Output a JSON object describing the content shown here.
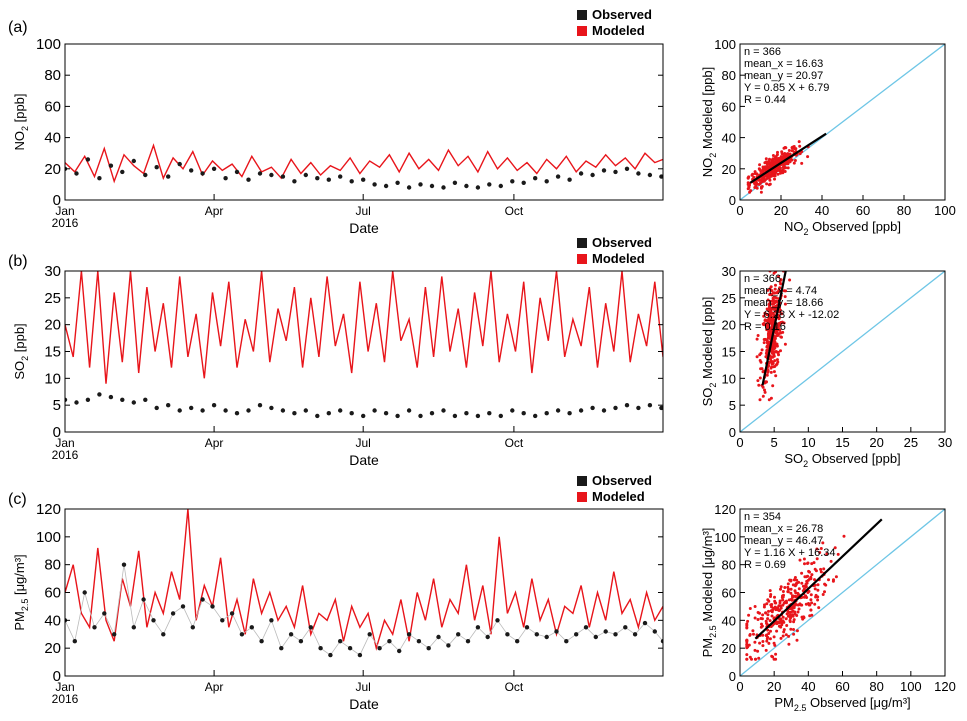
{
  "legend": {
    "observed": "Observed",
    "modeled": "Modeled"
  },
  "colors": {
    "observed": "#1a1a1a",
    "modeled": "#e8151b",
    "one_to_one": "#6ec6e6",
    "axis": "#000000"
  },
  "chart_data": [
    {
      "id": "a",
      "panel_label": "(a)",
      "type": "line",
      "title": "",
      "ylabel_main": "NO",
      "ylabel_sub": "2",
      "ylabel_unit": " [ppb]",
      "xlabel": "Date",
      "ylim": [
        0,
        100
      ],
      "yticks": [
        0,
        20,
        40,
        60,
        80,
        100
      ],
      "xticks": [
        {
          "day": 0,
          "label": "Jan"
        },
        {
          "day": 91,
          "label": "Apr"
        },
        {
          "day": 182,
          "label": "Jul"
        },
        {
          "day": 274,
          "label": "Oct"
        }
      ],
      "year_label": "2016",
      "series": [
        {
          "name": "Modeled",
          "style": "line",
          "x_days": [
            0,
            6,
            12,
            18,
            24,
            30,
            36,
            42,
            48,
            54,
            60,
            66,
            72,
            78,
            84,
            90,
            96,
            102,
            108,
            114,
            120,
            126,
            132,
            138,
            144,
            150,
            156,
            162,
            168,
            174,
            180,
            186,
            192,
            198,
            204,
            210,
            216,
            222,
            228,
            234,
            240,
            246,
            252,
            258,
            264,
            270,
            276,
            282,
            288,
            294,
            300,
            306,
            312,
            318,
            324,
            330,
            336,
            342,
            348,
            354,
            360,
            365
          ],
          "values": [
            24,
            18,
            28,
            15,
            33,
            12,
            29,
            22,
            17,
            35,
            14,
            27,
            20,
            31,
            16,
            25,
            19,
            23,
            15,
            28,
            18,
            21,
            14,
            26,
            17,
            24,
            16,
            22,
            19,
            27,
            17,
            25,
            21,
            29,
            18,
            30,
            20,
            26,
            19,
            32,
            22,
            28,
            18,
            31,
            20,
            27,
            19,
            24,
            17,
            26,
            20,
            28,
            18,
            25,
            21,
            29,
            22,
            27,
            20,
            30,
            24,
            26
          ]
        },
        {
          "name": "Observed",
          "style": "points",
          "x_days": [
            0,
            7,
            14,
            21,
            28,
            35,
            42,
            49,
            56,
            63,
            70,
            77,
            84,
            91,
            98,
            105,
            112,
            119,
            126,
            133,
            140,
            147,
            154,
            161,
            168,
            175,
            182,
            189,
            196,
            203,
            210,
            217,
            224,
            231,
            238,
            245,
            252,
            259,
            266,
            273,
            280,
            287,
            294,
            301,
            308,
            315,
            322,
            329,
            336,
            343,
            350,
            357,
            364
          ],
          "values": [
            20,
            17,
            26,
            14,
            22,
            18,
            25,
            16,
            21,
            15,
            23,
            19,
            17,
            20,
            14,
            18,
            13,
            17,
            16,
            15,
            12,
            16,
            14,
            13,
            15,
            12,
            13,
            10,
            9,
            11,
            8,
            10,
            9,
            8,
            11,
            9,
            8,
            10,
            9,
            12,
            11,
            14,
            12,
            15,
            13,
            17,
            16,
            19,
            18,
            20,
            17,
            16,
            15
          ]
        }
      ]
    },
    {
      "id": "a_scatter",
      "type": "scatter",
      "xlabel_main": "NO",
      "xlabel_sub": "2",
      "xlabel_unit": " Observed [ppb]",
      "ylabel_main": "NO",
      "ylabel_sub": "2",
      "ylabel_unit": " Modeled [ppb]",
      "xlim": [
        0,
        100
      ],
      "ylim": [
        0,
        100
      ],
      "xticks": [
        0,
        20,
        40,
        60,
        80,
        100
      ],
      "yticks": [
        0,
        20,
        40,
        60,
        80,
        100
      ],
      "stats": [
        "n = 366",
        "mean_x = 16.63",
        "mean_y = 20.97",
        "Y = 0.85 X + 6.79",
        "R = 0.44"
      ],
      "fit": {
        "slope": 0.85,
        "intercept": 6.79,
        "x_range": [
          5,
          42
        ]
      },
      "cloud": {
        "x_mean": 16.63,
        "x_sd": 6,
        "y_mean": 20.97,
        "y_sd": 5,
        "n": 366,
        "x_min": 4,
        "x_max": 45,
        "y_min": 5,
        "y_max": 40
      }
    },
    {
      "id": "b",
      "panel_label": "(b)",
      "type": "line",
      "title": "",
      "ylabel_main": "SO",
      "ylabel_sub": "2",
      "ylabel_unit": " [ppb]",
      "xlabel": "Date",
      "ylim": [
        0,
        30
      ],
      "yticks": [
        0,
        5,
        10,
        15,
        20,
        25,
        30
      ],
      "xticks": [
        {
          "day": 0,
          "label": "Jan"
        },
        {
          "day": 91,
          "label": "Apr"
        },
        {
          "day": 182,
          "label": "Jul"
        },
        {
          "day": 274,
          "label": "Oct"
        }
      ],
      "year_label": "2016",
      "series": [
        {
          "name": "Modeled",
          "style": "line",
          "x_days": [
            0,
            5,
            10,
            15,
            20,
            25,
            30,
            35,
            40,
            45,
            50,
            55,
            60,
            65,
            70,
            75,
            80,
            85,
            90,
            95,
            100,
            105,
            110,
            115,
            120,
            125,
            130,
            135,
            140,
            145,
            150,
            155,
            160,
            165,
            170,
            175,
            180,
            185,
            190,
            195,
            200,
            205,
            210,
            215,
            220,
            225,
            230,
            235,
            240,
            245,
            250,
            255,
            260,
            265,
            270,
            275,
            280,
            285,
            290,
            295,
            300,
            305,
            310,
            315,
            320,
            325,
            330,
            335,
            340,
            345,
            350,
            355,
            360,
            365
          ],
          "values": [
            20,
            14,
            30,
            12,
            30,
            9,
            26,
            13,
            30,
            11,
            27,
            15,
            24,
            12,
            29,
            14,
            22,
            10,
            26,
            16,
            28,
            12,
            21,
            15,
            30,
            13,
            23,
            17,
            27,
            12,
            25,
            14,
            29,
            16,
            22,
            11,
            28,
            15,
            24,
            13,
            30,
            17,
            21,
            12,
            27,
            14,
            29,
            15,
            23,
            12,
            26,
            16,
            30,
            13,
            22,
            15,
            28,
            11,
            25,
            17,
            30,
            14,
            21,
            16,
            27,
            12,
            24,
            15,
            30,
            13,
            22,
            16,
            28,
            14
          ]
        },
        {
          "name": "Observed",
          "style": "points",
          "x_days": [
            0,
            7,
            14,
            21,
            28,
            35,
            42,
            49,
            56,
            63,
            70,
            77,
            84,
            91,
            98,
            105,
            112,
            119,
            126,
            133,
            140,
            147,
            154,
            161,
            168,
            175,
            182,
            189,
            196,
            203,
            210,
            217,
            224,
            231,
            238,
            245,
            252,
            259,
            266,
            273,
            280,
            287,
            294,
            301,
            308,
            315,
            322,
            329,
            336,
            343,
            350,
            357,
            364
          ],
          "values": [
            6,
            5.5,
            6,
            7,
            6.5,
            6,
            5.5,
            6,
            4.5,
            5,
            4,
            4.5,
            4,
            5,
            4,
            3.5,
            4,
            5,
            4.5,
            4,
            3.5,
            4,
            3,
            3.5,
            4,
            3.5,
            3,
            4,
            3.5,
            3,
            4,
            3,
            3.5,
            4,
            3,
            3.5,
            3,
            3.5,
            3,
            4,
            3.5,
            3,
            3.5,
            4,
            3.5,
            4,
            4.5,
            4,
            4.5,
            5,
            4.5,
            5,
            4.5
          ]
        }
      ]
    },
    {
      "id": "b_scatter",
      "type": "scatter",
      "xlabel_main": "SO",
      "xlabel_sub": "2",
      "xlabel_unit": " Observed [ppb]",
      "ylabel_main": "SO",
      "ylabel_sub": "2",
      "ylabel_unit": " Modeled [ppb]",
      "xlim": [
        0,
        30
      ],
      "ylim": [
        0,
        30
      ],
      "xticks": [
        0,
        5,
        10,
        15,
        20,
        25,
        30
      ],
      "yticks": [
        0,
        5,
        10,
        15,
        20,
        25,
        30
      ],
      "stats": [
        "n = 366",
        "mean_x = 4.74",
        "mean_y = 18.66",
        "Y = 6.28 X + -12.02",
        "R = 0.16"
      ],
      "fit": {
        "slope": 6.28,
        "intercept": -12.02,
        "x_range": [
          3.3,
          6.7
        ]
      },
      "cloud": {
        "x_mean": 4.74,
        "x_sd": 0.8,
        "y_mean": 18.66,
        "y_sd": 6,
        "n": 366,
        "x_min": 2.5,
        "x_max": 8,
        "y_min": 6,
        "y_max": 30
      }
    },
    {
      "id": "c",
      "panel_label": "(c)",
      "type": "line",
      "title": "",
      "ylabel_main": "PM",
      "ylabel_sub": "2.5",
      "ylabel_unit": " [μg/m³]",
      "xlabel": "Date",
      "ylim": [
        0,
        120
      ],
      "yticks": [
        0,
        20,
        40,
        60,
        80,
        100,
        120
      ],
      "xticks": [
        {
          "day": 0,
          "label": "Jan"
        },
        {
          "day": 91,
          "label": "Apr"
        },
        {
          "day": 182,
          "label": "Jul"
        },
        {
          "day": 274,
          "label": "Oct"
        }
      ],
      "year_label": "2016",
      "series": [
        {
          "name": "Modeled",
          "style": "line",
          "x_days": [
            0,
            5,
            10,
            15,
            20,
            25,
            30,
            35,
            40,
            45,
            50,
            55,
            60,
            65,
            70,
            75,
            80,
            85,
            90,
            95,
            100,
            105,
            110,
            115,
            120,
            125,
            130,
            135,
            140,
            145,
            150,
            155,
            160,
            165,
            170,
            175,
            180,
            185,
            190,
            195,
            200,
            205,
            210,
            215,
            220,
            225,
            230,
            235,
            240,
            245,
            250,
            255,
            260,
            265,
            270,
            275,
            280,
            285,
            290,
            295,
            300,
            305,
            310,
            315,
            320,
            325,
            330,
            335,
            340,
            345,
            350,
            355,
            360,
            365
          ],
          "values": [
            60,
            80,
            45,
            35,
            92,
            40,
            25,
            70,
            50,
            90,
            35,
            60,
            45,
            75,
            55,
            120,
            40,
            65,
            50,
            85,
            35,
            55,
            30,
            70,
            45,
            60,
            40,
            50,
            35,
            65,
            30,
            45,
            40,
            55,
            25,
            50,
            35,
            45,
            20,
            40,
            30,
            55,
            25,
            60,
            40,
            70,
            35,
            55,
            45,
            80,
            40,
            65,
            30,
            100,
            45,
            60,
            35,
            70,
            40,
            55,
            30,
            50,
            45,
            65,
            35,
            60,
            40,
            75,
            45,
            55,
            35,
            60,
            40,
            50
          ]
        },
        {
          "name": "Observed",
          "style": "points",
          "x_days": [
            0,
            6,
            12,
            18,
            24,
            30,
            36,
            42,
            48,
            54,
            60,
            66,
            72,
            78,
            84,
            90,
            96,
            102,
            108,
            114,
            120,
            126,
            132,
            138,
            144,
            150,
            156,
            162,
            168,
            174,
            180,
            186,
            192,
            198,
            204,
            210,
            216,
            222,
            228,
            234,
            240,
            246,
            252,
            258,
            264,
            270,
            276,
            282,
            288,
            294,
            300,
            306,
            312,
            318,
            324,
            330,
            336,
            342,
            348,
            354,
            360,
            365
          ],
          "values": [
            40,
            25,
            60,
            35,
            45,
            30,
            80,
            35,
            55,
            40,
            30,
            45,
            50,
            35,
            55,
            50,
            40,
            45,
            30,
            35,
            25,
            40,
            20,
            30,
            25,
            35,
            20,
            15,
            25,
            20,
            15,
            30,
            20,
            25,
            18,
            30,
            25,
            20,
            28,
            22,
            30,
            25,
            35,
            28,
            40,
            30,
            25,
            35,
            30,
            28,
            32,
            25,
            30,
            35,
            28,
            32,
            30,
            35,
            30,
            38,
            32,
            25
          ]
        }
      ]
    },
    {
      "id": "c_scatter",
      "type": "scatter",
      "xlabel_main": "PM",
      "xlabel_sub": "2.5",
      "xlabel_unit": " Observed [μg/m³]",
      "ylabel_main": "PM",
      "ylabel_sub": "2.5",
      "ylabel_unit": " Modeled [μg/m³]",
      "xlim": [
        0,
        120
      ],
      "ylim": [
        0,
        120
      ],
      "xticks": [
        0,
        20,
        40,
        60,
        80,
        100,
        120
      ],
      "yticks": [
        0,
        20,
        40,
        60,
        80,
        100,
        120
      ],
      "stats": [
        "n = 354",
        "mean_x = 26.78",
        "mean_y = 46.47",
        "Y = 1.16 X + 16.34",
        "R = 0.69"
      ],
      "fit": {
        "slope": 1.16,
        "intercept": 16.34,
        "x_range": [
          9,
          83
        ]
      },
      "cloud": {
        "x_mean": 26.78,
        "x_sd": 13,
        "y_mean": 46.47,
        "y_sd": 16,
        "n": 354,
        "x_min": 4,
        "x_max": 90,
        "y_min": 12,
        "y_max": 120
      }
    }
  ]
}
